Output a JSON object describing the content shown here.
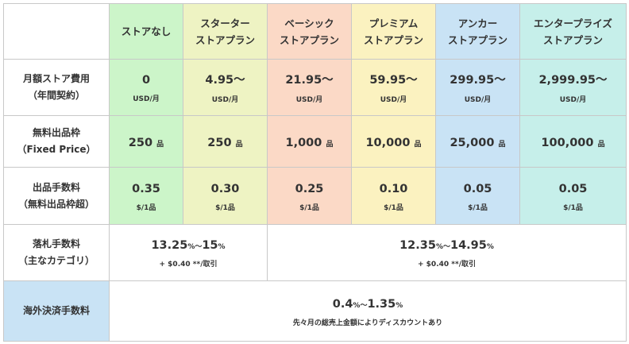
{
  "plans": [
    {
      "line1": "ストアなし",
      "line2": ""
    },
    {
      "line1": "スターター",
      "line2": "ストアプラン"
    },
    {
      "line1": "ベーシック",
      "line2": "ストアプラン"
    },
    {
      "line1": "プレミアム",
      "line2": "ストアプラン"
    },
    {
      "line1": "アンカー",
      "line2": "ストアプラン"
    },
    {
      "line1": "エンタープライズ",
      "line2": "ストアプラン"
    }
  ],
  "colors": {
    "none": "#ccf5c9",
    "starter": "#eef3c3",
    "basic": "#fbd9c6",
    "premium": "#fbf2c0",
    "anchor": "#c9e3f5",
    "enterprise": "#c6efea",
    "border": "#c8c8c8"
  },
  "rows": {
    "monthly_fee": {
      "label1": "月額ストア費用",
      "label2": "（年間契約）",
      "unit": "USD/月",
      "values": [
        "0",
        "4.95〜",
        "21.95〜",
        "59.95〜",
        "299.95〜",
        "2,999.95〜"
      ]
    },
    "free_listings": {
      "label1": "無料出品枠",
      "label2": "（Fixed Price）",
      "unit": "品",
      "values": [
        "250",
        "250",
        "1,000",
        "10,000",
        "25,000",
        "100,000"
      ]
    },
    "insertion_fee": {
      "label1": "出品手数料",
      "label2": "（無料出品枠超）",
      "unit": "$/1品",
      "values": [
        "0.35",
        "0.30",
        "0.25",
        "0.10",
        "0.05",
        "0.05"
      ]
    },
    "final_value_fee": {
      "label1": "落札手数料",
      "label2": "（主なカテゴリ）",
      "group1": {
        "from": "13.25",
        "sep": "%〜",
        "to": "15",
        "pct": "%",
        "note": "+ $0.40 **/取引"
      },
      "group2": {
        "from": "12.35",
        "sep": "%〜",
        "to": "14.95",
        "pct": "%",
        "note": "+ $0.40 **/取引"
      }
    },
    "intl_fee": {
      "label": "海外決済手数料",
      "from": "0.4",
      "sep": "%〜",
      "to": "1.35",
      "pct": "%",
      "note": "先々月の総売上金額によりディスカウントあり"
    }
  }
}
